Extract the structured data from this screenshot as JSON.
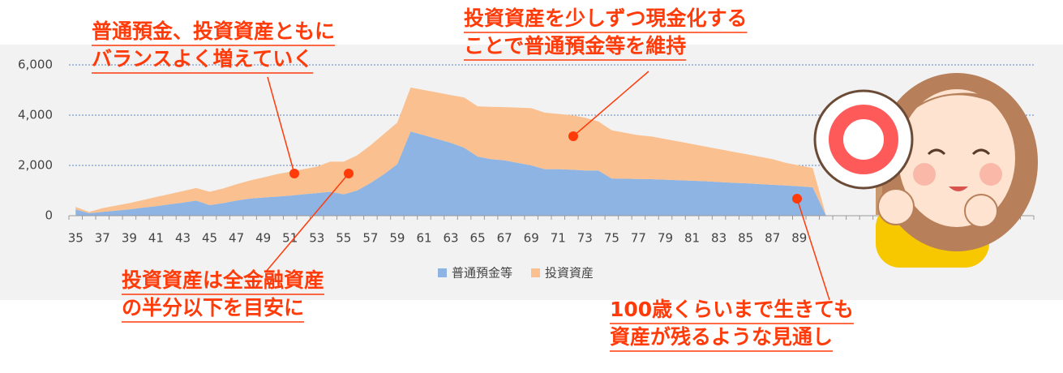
{
  "chart_data": {
    "type": "stacked-area",
    "categories": [
      "35",
      null,
      "37",
      null,
      "39",
      null,
      "41",
      null,
      "43",
      null,
      "45",
      null,
      "47",
      null,
      "49",
      null,
      "51",
      null,
      "53",
      null,
      "55",
      null,
      "57",
      null,
      "59",
      null,
      "61",
      null,
      "63",
      null,
      "65",
      null,
      "67",
      null,
      "69",
      null,
      "71",
      null,
      "73",
      null,
      "75",
      null,
      "77",
      null,
      "79",
      null,
      "81",
      null,
      "83",
      null,
      "85",
      null,
      "87",
      null,
      "89",
      null,
      null,
      null,
      null,
      null,
      null,
      null,
      null,
      null,
      null,
      null,
      null,
      null,
      null,
      null,
      null,
      null
    ],
    "series": [
      {
        "name": "普通預金等",
        "color": "#8eb4e3",
        "values": [
          250,
          100,
          150,
          200,
          250,
          320,
          380,
          450,
          520,
          600,
          420,
          500,
          600,
          680,
          720,
          760,
          800,
          850,
          900,
          950,
          850,
          1000,
          1300,
          1650,
          2050,
          3350,
          3200,
          3050,
          2900,
          2700,
          2350,
          2250,
          2200,
          2100,
          2000,
          1850,
          1850,
          1830,
          1800,
          1800,
          1480,
          1470,
          1460,
          1450,
          1430,
          1410,
          1390,
          1370,
          1340,
          1310,
          1290,
          1260,
          1230,
          1200,
          1170,
          1130,
          0,
          null,
          null,
          null,
          null,
          null,
          null,
          null,
          null,
          null,
          null,
          null,
          null,
          null,
          null,
          null
        ]
      },
      {
        "name": "投資資産",
        "color": "#fac090",
        "values": [
          100,
          50,
          150,
          200,
          250,
          300,
          360,
          410,
          460,
          500,
          530,
          580,
          650,
          720,
          800,
          890,
          950,
          1000,
          1050,
          1200,
          1300,
          1400,
          1500,
          1600,
          1650,
          1750,
          1800,
          1850,
          1900,
          2000,
          2000,
          2080,
          2120,
          2200,
          2280,
          2250,
          2200,
          2170,
          2100,
          1950,
          1920,
          1830,
          1740,
          1700,
          1620,
          1540,
          1460,
          1380,
          1310,
          1240,
          1160,
          1090,
          1020,
          900,
          830,
          770,
          0,
          null,
          null,
          null,
          null,
          null,
          null,
          null,
          null,
          null,
          null,
          null,
          null,
          null,
          null,
          null
        ]
      }
    ],
    "ylim": [
      0,
      6000
    ],
    "yticks": [
      0,
      {
        "value": 2000,
        "label": "2,000"
      },
      {
        "value": 4000,
        "label": "4,000"
      },
      {
        "value": 6000,
        "label": "6,000"
      }
    ],
    "grid": true,
    "legend": "bottom",
    "annotations": [
      {
        "lines": [
          "普通預金、投資資産ともに",
          "バランスよく増えていく"
        ]
      },
      {
        "lines": [
          "投資資産を少しずつ現金化する",
          "ことで普通預金等を維持"
        ]
      },
      {
        "lines": [
          "投資資産は全金融資産",
          "の半分以下を目安に"
        ]
      },
      {
        "lines": [
          "100歳くらいまで生きても",
          "資産が残るような見通し"
        ]
      }
    ]
  }
}
